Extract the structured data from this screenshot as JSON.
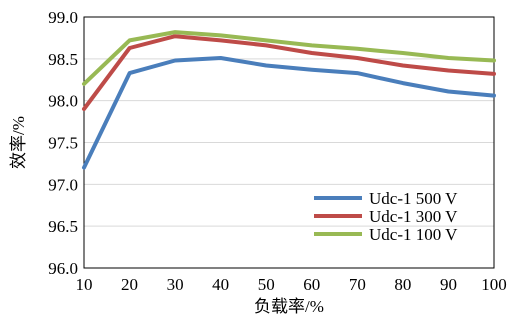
{
  "chart_data": {
    "type": "line",
    "title": "",
    "xlabel": "负载率/%",
    "ylabel": "效率/%",
    "xlim": [
      10,
      100
    ],
    "ylim": [
      96.0,
      99.0
    ],
    "x_ticks": [
      "10",
      "20",
      "30",
      "40",
      "50",
      "60",
      "70",
      "80",
      "90",
      "100"
    ],
    "y_ticks": [
      "96.0",
      "96.5",
      "97.0",
      "97.5",
      "98.0",
      "98.5",
      "99.0"
    ],
    "grid": "horizontal",
    "legend_position": "bottom-right",
    "x": [
      10,
      20,
      30,
      40,
      50,
      60,
      70,
      80,
      90,
      100
    ],
    "series": [
      {
        "name": "Udc-1 500 V",
        "color": "#4a7ebb",
        "values": [
          97.2,
          98.33,
          98.48,
          98.51,
          98.42,
          98.37,
          98.33,
          98.21,
          98.11,
          98.06
        ]
      },
      {
        "name": "Udc-1 300 V",
        "color": "#be4b48",
        "values": [
          97.9,
          98.63,
          98.77,
          98.72,
          98.66,
          98.57,
          98.51,
          98.42,
          98.36,
          98.32
        ]
      },
      {
        "name": "Udc-1 100 V",
        "color": "#98b954",
        "values": [
          98.2,
          98.72,
          98.82,
          98.78,
          98.72,
          98.66,
          98.62,
          98.57,
          98.51,
          98.48
        ]
      }
    ]
  }
}
